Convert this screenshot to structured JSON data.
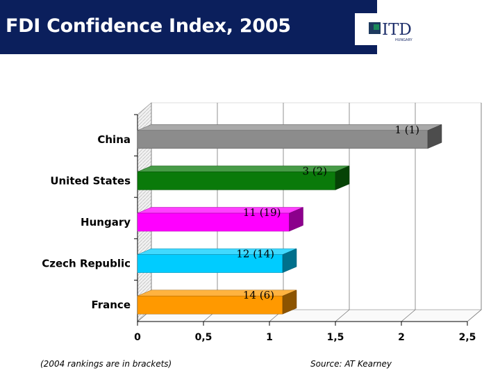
{
  "slide": {
    "title": "FDI Confidence Index, 2005",
    "logo_text": "ITD",
    "logo_subtext": "HUNGARY",
    "footnote": "(2004 rankings are in brackets)",
    "source": "Source: AT Kearney"
  },
  "colors": {
    "header_bg": "#0b1f5c"
  },
  "chart_data": {
    "type": "bar",
    "orientation": "horizontal",
    "title": "",
    "xlabel": "",
    "ylabel": "",
    "categories": [
      "China",
      "United States",
      "Hungary",
      "Czech Republic",
      "France"
    ],
    "values": [
      2.2,
      1.5,
      1.15,
      1.1,
      1.1
    ],
    "data_labels": [
      "1 (1)",
      "3 (2)",
      "11 (19)",
      "12 (14)",
      "14 (6)"
    ],
    "bar_colors": [
      "#8c8c8c",
      "#0a7a0a",
      "#ff00ff",
      "#00ccff",
      "#ff9900"
    ],
    "xlim": [
      0,
      2.5
    ],
    "x_ticks": [
      0,
      0.5,
      1,
      1.5,
      2,
      2.5
    ],
    "x_tick_labels": [
      "0",
      "0,5",
      "1",
      "1,5",
      "2",
      "2,5"
    ],
    "grid": true
  }
}
